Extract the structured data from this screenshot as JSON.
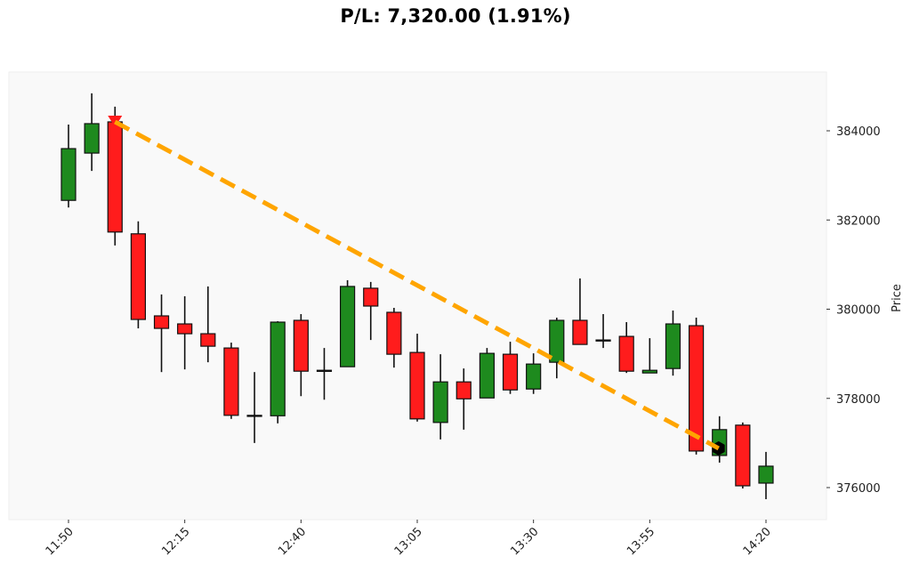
{
  "header": {
    "title": "P/L: 7,320.00 (1.91%)"
  },
  "colors": {
    "background": "#ffffff",
    "plot_background": "#f9f9f9",
    "plot_border": "#eeeeee",
    "up": "#1e8a1e",
    "down": "#ff1c1c",
    "wick": "#111111",
    "trade_line": "#ffa500",
    "entry_marker": "#ff1a1a",
    "exit_marker": "#000000"
  },
  "chart_data": {
    "type": "candlestick",
    "title": "P/L: 7,320.00 (1.91%)",
    "xlabel": "",
    "ylabel": "Price",
    "ylim": [
      375300,
      385500
    ],
    "y_ticks": [
      376000,
      378000,
      380000,
      382000,
      384000
    ],
    "x_tick_labels": [
      "11:50",
      "12:15",
      "12:40",
      "13:05",
      "13:30",
      "13:55",
      "14:20"
    ],
    "x_tick_indices": [
      0,
      5,
      10,
      15,
      20,
      25,
      30
    ],
    "grid": false,
    "legend": null,
    "candles": [
      {
        "time": "11:50",
        "open": 382440,
        "high": 384140,
        "low": 382280,
        "close": 383600
      },
      {
        "time": "11:55",
        "open": 383500,
        "high": 384840,
        "low": 383100,
        "close": 384160
      },
      {
        "time": "12:00",
        "open": 384200,
        "high": 384540,
        "low": 381430,
        "close": 381730
      },
      {
        "time": "12:05",
        "open": 381690,
        "high": 381970,
        "low": 379570,
        "close": 379770
      },
      {
        "time": "12:10",
        "open": 379850,
        "high": 380330,
        "low": 378590,
        "close": 379570
      },
      {
        "time": "12:15",
        "open": 379670,
        "high": 380290,
        "low": 378650,
        "close": 379450
      },
      {
        "time": "12:20",
        "open": 379450,
        "high": 380510,
        "low": 378810,
        "close": 379170
      },
      {
        "time": "12:25",
        "open": 379130,
        "high": 379250,
        "low": 377540,
        "close": 377620
      },
      {
        "time": "12:30",
        "open": 377620,
        "high": 378590,
        "low": 377000,
        "close": 377610
      },
      {
        "time": "12:35",
        "open": 377610,
        "high": 379730,
        "low": 377440,
        "close": 379710
      },
      {
        "time": "12:40",
        "open": 379750,
        "high": 379890,
        "low": 378050,
        "close": 378610
      },
      {
        "time": "12:45",
        "open": 378610,
        "high": 379130,
        "low": 377970,
        "close": 378630
      },
      {
        "time": "12:50",
        "open": 378710,
        "high": 380650,
        "low": 378710,
        "close": 380510
      },
      {
        "time": "12:55",
        "open": 380470,
        "high": 380610,
        "low": 379310,
        "close": 380070
      },
      {
        "time": "13:00",
        "open": 379930,
        "high": 380030,
        "low": 378690,
        "close": 378990
      },
      {
        "time": "13:05",
        "open": 379030,
        "high": 379450,
        "low": 377480,
        "close": 377540
      },
      {
        "time": "13:10",
        "open": 377460,
        "high": 378990,
        "low": 377080,
        "close": 378370
      },
      {
        "time": "13:15",
        "open": 378370,
        "high": 378670,
        "low": 377300,
        "close": 377990
      },
      {
        "time": "13:20",
        "open": 378010,
        "high": 379130,
        "low": 378010,
        "close": 379010
      },
      {
        "time": "13:25",
        "open": 378990,
        "high": 379270,
        "low": 378100,
        "close": 378190
      },
      {
        "time": "13:30",
        "open": 378210,
        "high": 379010,
        "low": 378100,
        "close": 378770
      },
      {
        "time": "13:35",
        "open": 378810,
        "high": 379810,
        "low": 378450,
        "close": 379750
      },
      {
        "time": "13:40",
        "open": 379750,
        "high": 380690,
        "low": 379210,
        "close": 379210
      },
      {
        "time": "13:45",
        "open": 379310,
        "high": 379890,
        "low": 379130,
        "close": 379300
      },
      {
        "time": "13:50",
        "open": 379390,
        "high": 379710,
        "low": 378570,
        "close": 378610
      },
      {
        "time": "13:55",
        "open": 378570,
        "high": 379350,
        "low": 378570,
        "close": 378630
      },
      {
        "time": "14:00",
        "open": 378670,
        "high": 379970,
        "low": 378510,
        "close": 379670
      },
      {
        "time": "14:05",
        "open": 379630,
        "high": 379810,
        "low": 376740,
        "close": 376820
      },
      {
        "time": "14:10",
        "open": 376720,
        "high": 377600,
        "low": 376560,
        "close": 377300
      },
      {
        "time": "14:15",
        "open": 377400,
        "high": 377460,
        "low": 375980,
        "close": 376040
      },
      {
        "time": "14:20",
        "open": 376100,
        "high": 376800,
        "low": 375740,
        "close": 376480
      }
    ],
    "trade": {
      "entry": {
        "index": 2,
        "time": "12:00",
        "price": 384200,
        "marker": "down-triangle"
      },
      "exit": {
        "index": 28,
        "time": "14:10",
        "price": 376880,
        "marker": "hexagon"
      },
      "line_style": "dashed",
      "pnl": 7320.0,
      "pnl_pct": 1.91
    }
  }
}
